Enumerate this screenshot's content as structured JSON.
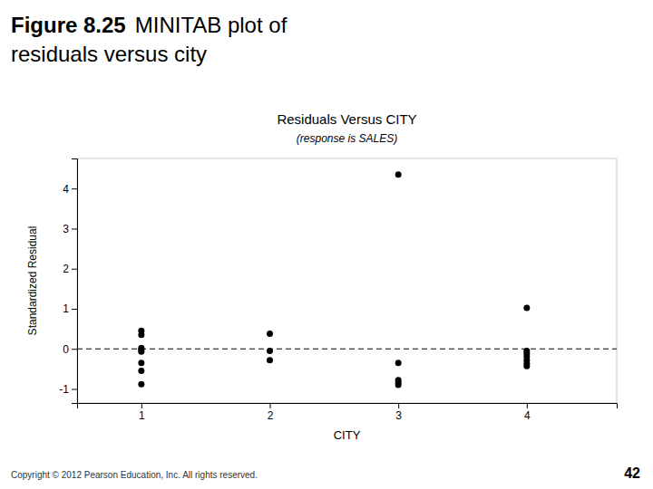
{
  "chart_data": {
    "type": "scatter",
    "title": "Residuals Versus CITY",
    "subtitle": "(response is SALES)",
    "xlabel": "CITY",
    "ylabel": "Standardized Residual",
    "annotations": [
      "Figure 8.25",
      "MINITAB plot of",
      "residuals versus city",
      "Copyright © 2012 Pearson Education, Inc. All rights reserved.",
      "42"
    ],
    "x": [
      1,
      1,
      1,
      1,
      1,
      1,
      1,
      1,
      2,
      2,
      2,
      3,
      3,
      3,
      3,
      3,
      4,
      4,
      4,
      4,
      4,
      4,
      4
    ],
    "values": [
      0.45,
      0.35,
      0.02,
      -0.02,
      -0.07,
      -0.35,
      -0.55,
      -0.88,
      0.38,
      -0.05,
      -0.28,
      4.35,
      -0.35,
      -0.78,
      -0.84,
      -0.9,
      1.02,
      -0.05,
      -0.12,
      -0.19,
      -0.28,
      -0.36,
      -0.43
    ],
    "color": "#000000",
    "hline_y": 0,
    "line_style": "dashed",
    "xlim": [
      0.5,
      4.7
    ],
    "ylim": [
      -1.35,
      4.75
    ],
    "xticks": [
      1,
      2,
      3,
      4
    ],
    "yticks": [
      -1,
      0,
      1,
      2,
      3,
      4
    ],
    "grid": false
  }
}
